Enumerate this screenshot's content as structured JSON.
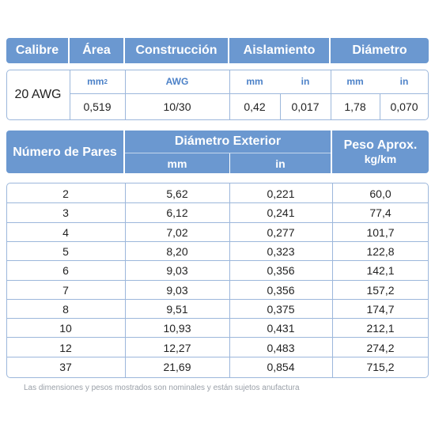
{
  "top_table": {
    "headers": {
      "calibre": "Calibre",
      "area": "Área",
      "construccion": "Construcción",
      "aislamiento": "Aislamiento",
      "diametro": "Diámetro"
    },
    "units": {
      "area": "mm",
      "area_sup": "2",
      "construccion": "AWG",
      "aislamiento_mm": "mm",
      "aislamiento_in": "in",
      "diametro_mm": "mm",
      "diametro_in": "in"
    },
    "values": {
      "calibre": "20 AWG",
      "area": "0,519",
      "construccion": "10/30",
      "aislamiento_mm": "0,42",
      "aislamiento_in": "0,017",
      "diametro_mm": "1,78",
      "diametro_in": "0,070"
    }
  },
  "main_table": {
    "headers": {
      "pares": "Número de Pares",
      "diametro_exterior": "Diámetro Exterior",
      "mm": "mm",
      "in": "in",
      "peso_line1": "Peso Aprox.",
      "peso_line2": "kg/km"
    },
    "rows": [
      {
        "pares": "2",
        "mm": "5,62",
        "in": "0,221",
        "peso": "60,0"
      },
      {
        "pares": "3",
        "mm": "6,12",
        "in": "0,241",
        "peso": "77,4"
      },
      {
        "pares": "4",
        "mm": "7,02",
        "in": "0,277",
        "peso": "101,7"
      },
      {
        "pares": "5",
        "mm": "8,20",
        "in": "0,323",
        "peso": "122,8"
      },
      {
        "pares": "6",
        "mm": "9,03",
        "in": "0,356",
        "peso": "142,1"
      },
      {
        "pares": "7",
        "mm": "9,03",
        "in": "0,356",
        "peso": "157,2"
      },
      {
        "pares": "8",
        "mm": "9,51",
        "in": "0,375",
        "peso": "174,7"
      },
      {
        "pares": "10",
        "mm": "10,93",
        "in": "0,431",
        "peso": "212,1"
      },
      {
        "pares": "12",
        "mm": "12,27",
        "in": "0,483",
        "peso": "274,2"
      },
      {
        "pares": "37",
        "mm": "21,69",
        "in": "0,854",
        "peso": "715,2"
      }
    ]
  },
  "footnote": "Las dimensiones y pesos mostrados son nominales y están sujetos anufactura",
  "colors": {
    "header_bg": "#6b98d0",
    "border": "#9cb7db",
    "accent_text": "#4d82c8"
  }
}
